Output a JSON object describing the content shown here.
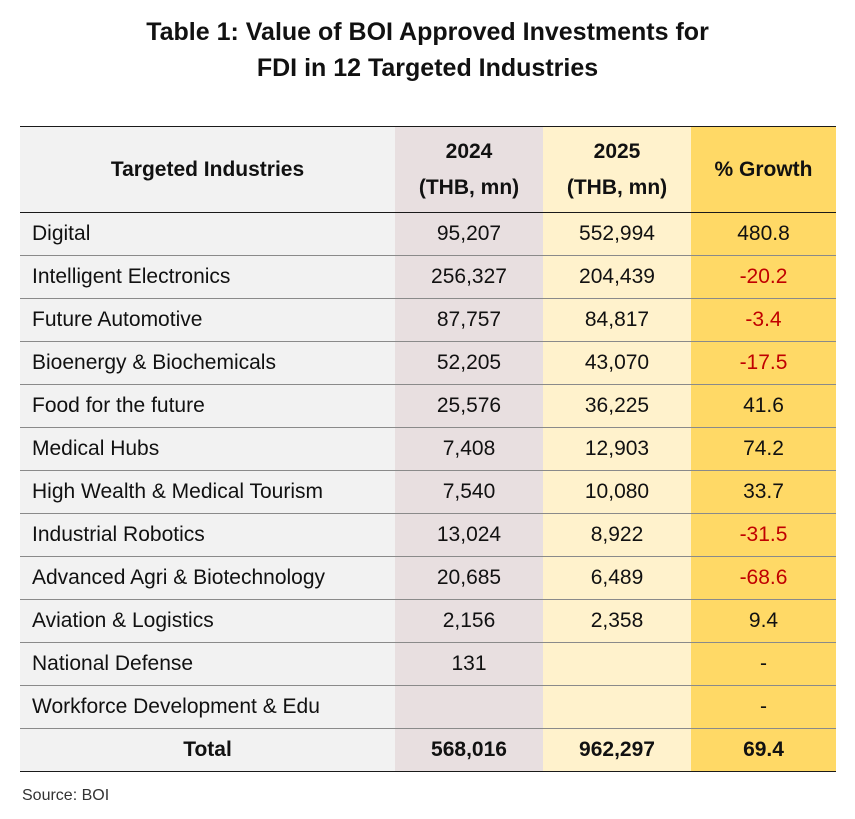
{
  "title_line1": "Table 1: Value of BOI Approved Investments for",
  "title_line2": "FDI in 12 Targeted Industries",
  "source": "Source: BOI",
  "colors": {
    "industry_col": "#f2f2f2",
    "y2024_col": "#e8dfe0",
    "y2025_col": "#fff2cc",
    "growth_col": "#ffd966",
    "negative_text": "#c00000"
  },
  "chart_data": {
    "type": "table",
    "title": "Table 1: Value of BOI Approved Investments for FDI in 12 Targeted Industries",
    "headers": {
      "industry": "Targeted Industries",
      "y2024": "2024",
      "y2024_unit": "(THB, mn)",
      "y2025": "2025",
      "y2025_unit": "(THB, mn)",
      "growth": "% Growth"
    },
    "rows": [
      {
        "industry": "Digital",
        "y2024": "95,207",
        "y2025": "552,994",
        "growth": "480.8"
      },
      {
        "industry": "Intelligent Electronics",
        "y2024": "256,327",
        "y2025": "204,439",
        "growth": "-20.2"
      },
      {
        "industry": "Future Automotive",
        "y2024": "87,757",
        "y2025": "84,817",
        "growth": "-3.4"
      },
      {
        "industry": "Bioenergy & Biochemicals",
        "y2024": "52,205",
        "y2025": "43,070",
        "growth": "-17.5"
      },
      {
        "industry": "Food for the future",
        "y2024": "25,576",
        "y2025": "36,225",
        "growth": "41.6"
      },
      {
        "industry": "Medical Hubs",
        "y2024": "7,408",
        "y2025": "12,903",
        "growth": "74.2"
      },
      {
        "industry": "High Wealth & Medical Tourism",
        "y2024": "7,540",
        "y2025": "10,080",
        "growth": "33.7"
      },
      {
        "industry": "Industrial Robotics",
        "y2024": "13,024",
        "y2025": "8,922",
        "growth": "-31.5"
      },
      {
        "industry": "Advanced Agri & Biotechnology",
        "y2024": "20,685",
        "y2025": "6,489",
        "growth": "-68.6"
      },
      {
        "industry": "Aviation & Logistics",
        "y2024": "2,156",
        "y2025": "2,358",
        "growth": "9.4"
      },
      {
        "industry": "National Defense",
        "y2024": "131",
        "y2025": "",
        "growth": "-"
      },
      {
        "industry": "Workforce Development & Edu",
        "y2024": "",
        "y2025": "",
        "growth": "-"
      }
    ],
    "total": {
      "label": "Total",
      "y2024": "568,016",
      "y2025": "962,297",
      "growth": "69.4"
    }
  }
}
